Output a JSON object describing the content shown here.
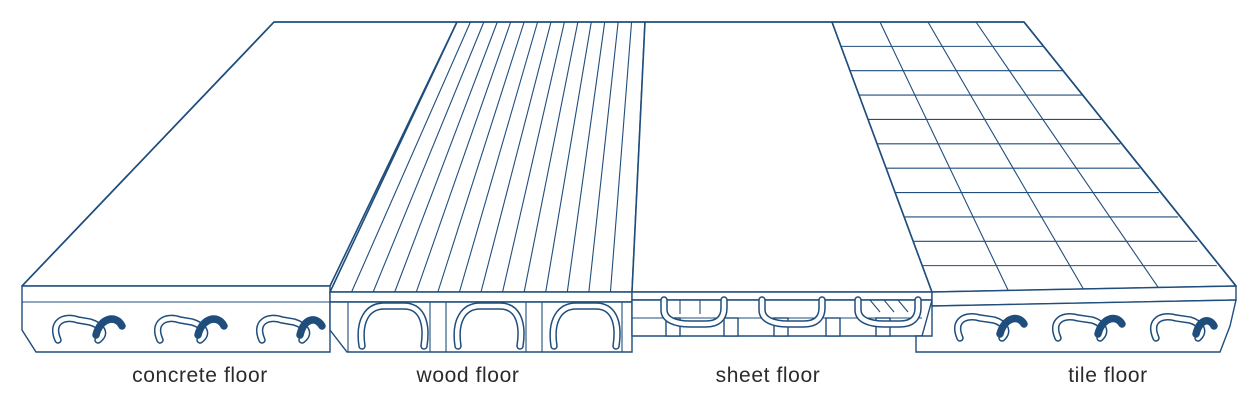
{
  "labels": {
    "concrete": "concrete floor",
    "wood": "wood floor",
    "sheet": "sheet floor",
    "tile": "tile floor"
  },
  "colors": {
    "line": "#1f4e7d",
    "text": "#2b2b2b",
    "background": "#ffffff"
  }
}
